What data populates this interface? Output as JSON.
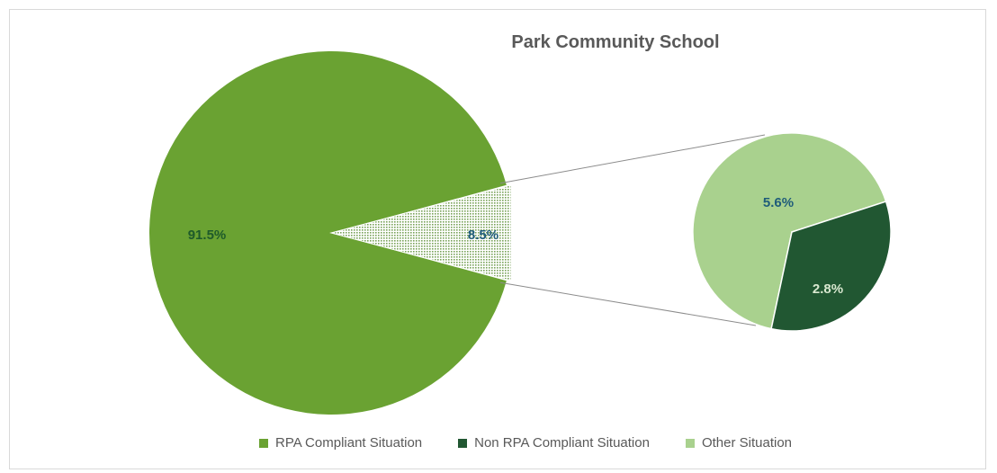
{
  "chart_data": {
    "type": "pie",
    "subtype": "pie-of-pie",
    "title": "Park Community School",
    "main_pie": {
      "slices": [
        {
          "name": "RPA Compliant Situation",
          "value": 91.5,
          "label": "91.5%",
          "color": "#6aa232"
        },
        {
          "name": "Other",
          "value": 8.5,
          "label": "8.5%",
          "color": "#d9ead3",
          "pattern": "dotted"
        }
      ]
    },
    "secondary_pie": {
      "slices": [
        {
          "name": "Other Situation",
          "value": 5.6,
          "label": "5.6%",
          "color": "#a9d18e"
        },
        {
          "name": "Non RPA Compliant Situation",
          "value": 2.8,
          "label": "2.8%",
          "color": "#215732"
        }
      ]
    },
    "legend": {
      "position": "bottom",
      "items": [
        {
          "label": "RPA Compliant Situation",
          "color": "#6aa232"
        },
        {
          "label": "Non RPA Compliant Situation",
          "color": "#215732"
        },
        {
          "label": "Other Situation",
          "color": "#a9d18e"
        }
      ]
    },
    "label_color_dark": "#1f5c7a",
    "label_color_light": "#d9e8d0"
  }
}
